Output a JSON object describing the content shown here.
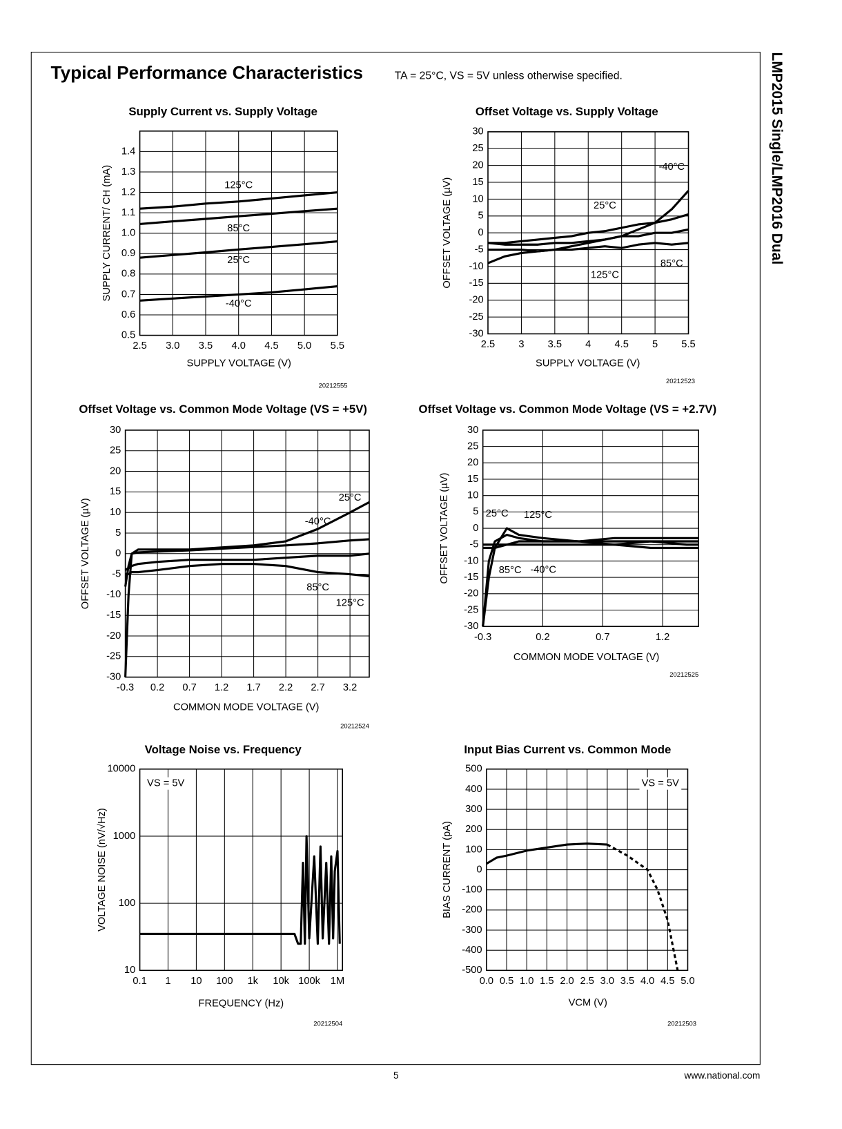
{
  "page": {
    "title": "Typical Performance Characteristics",
    "conditions": "TA = 25°C, VS = 5V unless otherwise specified.",
    "side_title": "LMP2015 Single/LMP2016 Dual",
    "page_number": "5",
    "url": "www.national.com"
  },
  "chart_data": [
    {
      "type": "line",
      "title": "Supply Current vs. Supply Voltage",
      "xlabel": "SUPPLY VOLTAGE (V)",
      "ylabel": "SUPPLY CURRENT/ CH (mA)",
      "figure_id": "20212555",
      "xlim": [
        2.5,
        5.5
      ],
      "xticks": [
        2.5,
        {
          "value": 3,
          "label": "3.0"
        },
        3.5,
        {
          "value": 4,
          "label": "4.0"
        },
        4.5,
        {
          "value": 5,
          "label": "5.0"
        },
        5.5
      ],
      "ylim": [
        0.5,
        1.5
      ],
      "yticks": [
        0.5,
        0.6,
        0.7,
        0.8,
        0.9,
        {
          "value": 1,
          "label": "1.0"
        },
        1.1,
        1.2,
        1.3,
        1.4
      ],
      "grid": true,
      "x": [
        2.5,
        3,
        3.5,
        4,
        4.5,
        5,
        5.5
      ],
      "series": [
        {
          "name": "125°C",
          "color": "#000000",
          "values": [
            1.12,
            1.13,
            1.145,
            1.155,
            1.17,
            1.185,
            1.2
          ]
        },
        {
          "name": "85°C",
          "color": "#000000",
          "values": [
            1.045,
            1.058,
            1.07,
            1.083,
            1.095,
            1.108,
            1.12
          ]
        },
        {
          "name": "25°C",
          "color": "#000000",
          "values": [
            0.88,
            0.893,
            0.906,
            0.92,
            0.933,
            0.946,
            0.96
          ]
        },
        {
          "name": "-40°C",
          "color": "#000000",
          "values": [
            0.67,
            0.68,
            0.69,
            0.7,
            0.71,
            0.725,
            0.74
          ]
        }
      ]
    },
    {
      "type": "line",
      "title": "Offset Voltage vs. Supply Voltage",
      "xlabel": "SUPPLY VOLTAGE (V)",
      "ylabel": "OFFSET VOLTAGE (µV)",
      "figure_id": "20212523",
      "xlim": [
        2.5,
        5.5
      ],
      "xticks": [
        2.5,
        3,
        3.5,
        4,
        4.5,
        5,
        5.5
      ],
      "ylim": [
        -30,
        30
      ],
      "yticks": [
        -30,
        -25,
        -20,
        -15,
        -10,
        -5,
        0,
        5,
        10,
        15,
        20,
        25,
        30
      ],
      "grid": true,
      "x": [
        2.5,
        2.75,
        3,
        3.25,
        3.5,
        3.75,
        4,
        4.25,
        4.5,
        4.75,
        5,
        5.25,
        5.5
      ],
      "series": [
        {
          "name": "-40°C",
          "color": "#000000",
          "values": [
            -9,
            -7,
            -6,
            -5.5,
            -5,
            -4,
            -3,
            -2,
            -1,
            1,
            3,
            7,
            12.5
          ]
        },
        {
          "name": "25°C",
          "color": "#000000",
          "values": [
            -3,
            -3,
            -2.5,
            -2,
            -1.5,
            -1,
            0,
            0.5,
            1.5,
            2.5,
            3,
            4,
            5.5
          ]
        },
        {
          "name": "85°C",
          "color": "#000000",
          "values": [
            -3,
            -3.5,
            -3.5,
            -3.5,
            -3,
            -3,
            -2.5,
            -2,
            -1,
            -1,
            0,
            0,
            1
          ]
        },
        {
          "name": "125°C",
          "color": "#000000",
          "values": [
            -5,
            -5,
            -5,
            -5.5,
            -5,
            -5,
            -4.5,
            -4,
            -4.5,
            -3.5,
            -3,
            -3.5,
            -3
          ]
        }
      ]
    },
    {
      "type": "line",
      "title": "Offset Voltage vs. Common Mode Voltage (VS = +5V)",
      "xlabel": "COMMON MODE VOLTAGE (V)",
      "ylabel": "OFFSET VOLTAGE (µV)",
      "figure_id": "20212524",
      "xlim": [
        -0.3,
        3.5
      ],
      "xticks": [
        -0.3,
        0.2,
        0.7,
        1.2,
        1.7,
        2.2,
        2.7,
        3.2
      ],
      "ylim": [
        -30,
        30
      ],
      "yticks": [
        -30,
        -25,
        -20,
        -15,
        -10,
        -5,
        0,
        5,
        10,
        15,
        20,
        25,
        30
      ],
      "grid": true,
      "x": [
        -0.3,
        -0.25,
        -0.2,
        -0.1,
        0.2,
        0.7,
        1.2,
        1.7,
        2.2,
        2.7,
        3.2,
        3.5
      ],
      "series": [
        {
          "name": "25°C",
          "color": "#000000",
          "values": [
            -30,
            -10,
            0,
            1,
            1,
            1,
            1.5,
            2,
            3,
            6,
            10,
            12.5
          ]
        },
        {
          "name": "-40°C",
          "color": "#000000",
          "values": [
            -8,
            -3,
            0,
            0.3,
            0.5,
            0.8,
            1.2,
            1.6,
            2,
            2.5,
            3.2,
            3.5
          ]
        },
        {
          "name": "85°C",
          "color": "#000000",
          "values": [
            -4,
            -3.5,
            -3,
            -2.5,
            -2,
            -1.5,
            -1.5,
            -1.5,
            -1,
            -0.5,
            -0.5,
            0
          ]
        },
        {
          "name": "125°C",
          "color": "#000000",
          "values": [
            -5,
            -5,
            -4.5,
            -4.5,
            -4,
            -3,
            -2.5,
            -2.5,
            -3,
            -4.5,
            -5,
            -5.5
          ]
        }
      ]
    },
    {
      "type": "line",
      "title": "Offset Voltage vs. Common Mode Voltage (VS = +2.7V)",
      "xlabel": "COMMON MODE VOLTAGE (V)",
      "ylabel": "OFFSET VOLTAGE (µV)",
      "figure_id": "20212525",
      "xlim": [
        -0.3,
        1.5
      ],
      "xticks": [
        -0.3,
        0.2,
        0.7,
        1.2
      ],
      "ylim": [
        -30,
        30
      ],
      "yticks": [
        -30,
        -25,
        -20,
        -15,
        -10,
        -5,
        0,
        5,
        10,
        15,
        20,
        25,
        30
      ],
      "grid": true,
      "x": [
        -0.3,
        -0.25,
        -0.2,
        -0.1,
        0,
        0.2,
        0.5,
        0.8,
        1.1,
        1.4,
        1.5
      ],
      "series": [
        {
          "name": "25°C",
          "color": "#000000",
          "values": [
            -30,
            -10,
            -4,
            -2,
            -3,
            -4,
            -4,
            -4,
            -4,
            -4,
            -4
          ]
        },
        {
          "name": "125°C",
          "color": "#000000",
          "values": [
            -30,
            -15,
            -6,
            0,
            -2,
            -3,
            -4,
            -3,
            -3,
            -3,
            -3
          ]
        },
        {
          "name": "85°C",
          "color": "#000000",
          "values": [
            -5,
            -5,
            -5,
            -5,
            -4,
            -4,
            -4,
            -5,
            -4,
            -5,
            -5
          ]
        },
        {
          "name": "-40°C",
          "color": "#000000",
          "values": [
            -6,
            -6,
            -6,
            -5,
            -5,
            -5,
            -5,
            -5,
            -6,
            -6,
            -6
          ]
        }
      ]
    },
    {
      "type": "line",
      "title": "Voltage Noise vs. Frequency",
      "xlabel": "FREQUENCY (Hz)",
      "ylabel": "VOLTAGE NOISE (nV/√Hz)",
      "figure_id": "20212504",
      "note": "VS = 5V",
      "log_x": true,
      "log_y": true,
      "xlim": [
        0.1,
        1500000
      ],
      "xticks": [
        0.1,
        1,
        10,
        100,
        {
          "value": 1000,
          "label": "1k"
        },
        {
          "value": 10000,
          "label": "10k"
        },
        {
          "value": 100000,
          "label": "100k"
        },
        {
          "value": 1000000,
          "label": "1M"
        }
      ],
      "ylim": [
        10,
        10000
      ],
      "yticks": [
        10,
        100,
        1000,
        10000
      ],
      "grid": true,
      "x": [
        0.1,
        1,
        10,
        100,
        1000,
        10000,
        30000,
        40000,
        50000,
        60000,
        70000,
        80000,
        100000,
        150000,
        200000,
        250000,
        300000,
        400000,
        500000,
        600000,
        700000,
        800000,
        1000000,
        1200000
      ],
      "series": [
        {
          "color": "#000000",
          "values": [
            35,
            35,
            35,
            35,
            35,
            35,
            35,
            25,
            25,
            400,
            25,
            1000,
            30,
            500,
            25,
            700,
            30,
            400,
            25,
            500,
            30,
            300,
            600,
            25
          ]
        }
      ]
    },
    {
      "type": "line",
      "title": "Input Bias Current vs. Common Mode",
      "xlabel": "VCM (V)",
      "ylabel": "BIAS CURRENT (pA)",
      "figure_id": "20212503",
      "note": "VS = 5V",
      "xlim": [
        0,
        5
      ],
      "xticks": [
        {
          "value": 0,
          "label": "0.0"
        },
        0.5,
        {
          "value": 1,
          "label": "1.0"
        },
        1.5,
        {
          "value": 2,
          "label": "2.0"
        },
        2.5,
        {
          "value": 3,
          "label": "3.0"
        },
        3.5,
        {
          "value": 4,
          "label": "4.0"
        },
        4.5,
        {
          "value": 5,
          "label": "5.0"
        }
      ],
      "ylim": [
        -500,
        500
      ],
      "yticks": [
        -500,
        -400,
        -300,
        -200,
        -100,
        0,
        100,
        200,
        300,
        400,
        500
      ],
      "grid": true,
      "series": [
        {
          "color": "#000000",
          "x": [
            0,
            0.25,
            0.5,
            1,
            1.5,
            2,
            2.5,
            3
          ],
          "values": [
            30,
            60,
            70,
            95,
            110,
            125,
            130,
            125
          ]
        },
        {
          "color": "#000000",
          "dash": true,
          "x": [
            3,
            3.5,
            4,
            4.25,
            4.5,
            4.75
          ],
          "values": [
            125,
            70,
            0,
            -100,
            -250,
            -500
          ]
        }
      ]
    }
  ]
}
